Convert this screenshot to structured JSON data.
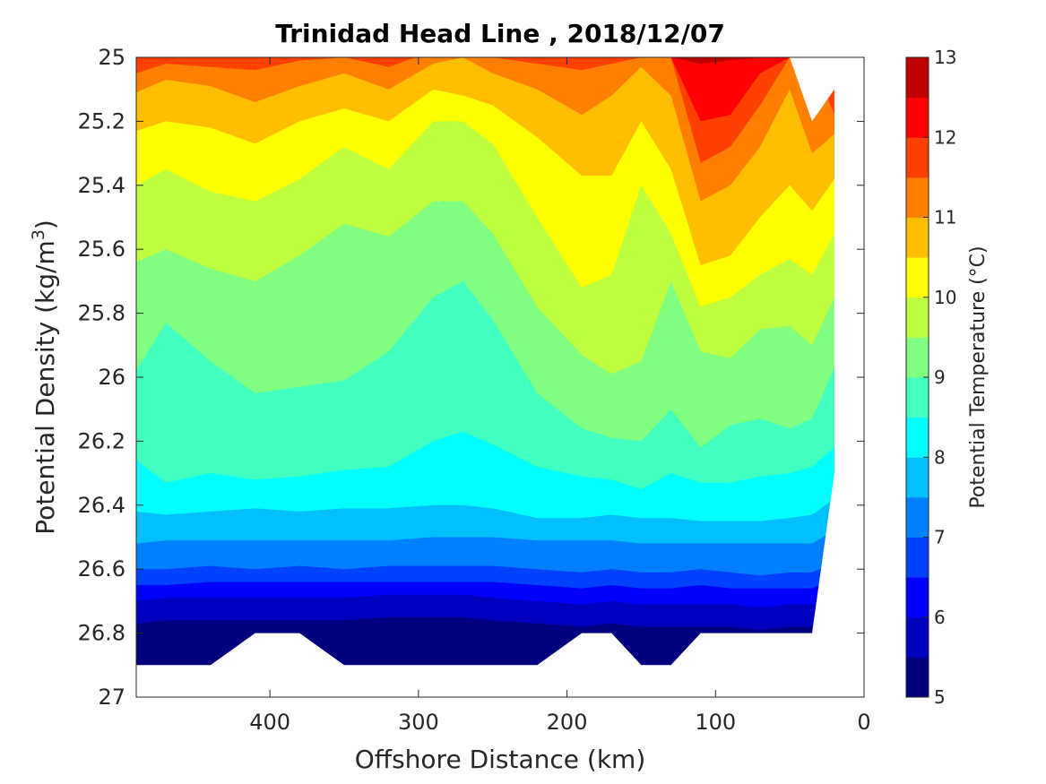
{
  "chart_data": {
    "type": "filled-contour",
    "title": "Trinidad Head Line , 2018/12/07",
    "xlabel": "Offshore Distance (km)",
    "ylabel": "Potential Density (kg/m",
    "ylabel_sup": "3",
    "ylabel_suffix": ")",
    "xlim": [
      490,
      0
    ],
    "x_reversed": true,
    "ylim": [
      25,
      27
    ],
    "y_reversed": true,
    "x_ticks": [
      400,
      300,
      200,
      100,
      0
    ],
    "x_tick_labels": [
      "400",
      "300",
      "200",
      "100",
      "0"
    ],
    "y_ticks": [
      25,
      25.2,
      25.4,
      25.6,
      25.8,
      26,
      26.2,
      26.4,
      26.6,
      26.8,
      27
    ],
    "y_tick_labels": [
      "25",
      "25.2",
      "25.4",
      "25.6",
      "25.8",
      "26",
      "26.2",
      "26.4",
      "26.6",
      "26.8",
      "27"
    ],
    "grid": false,
    "x": [
      490,
      470,
      440,
      410,
      380,
      350,
      320,
      290,
      270,
      250,
      220,
      190,
      170,
      150,
      130,
      110,
      90,
      70,
      50,
      35,
      20
    ],
    "contour_levels": [
      5,
      5.5,
      6,
      6.5,
      7,
      7.5,
      8,
      8.5,
      9,
      9.5,
      10,
      10.5,
      11,
      11.5,
      12,
      12.5,
      13
    ],
    "contour_boundaries": [
      {
        "level": 12.5,
        "sigma": [
          25,
          25,
          24.99,
          25.01,
          25,
          25,
          25,
          25,
          25,
          25,
          25,
          25.01,
          25,
          25,
          25,
          25.02,
          25.01,
          25,
          25,
          25,
          25
        ]
      },
      {
        "level": 12,
        "sigma": [
          25,
          25,
          25,
          25,
          25,
          25,
          25,
          25,
          25,
          25,
          25,
          25,
          25,
          25,
          25,
          25.2,
          25.18,
          25.05,
          25,
          25,
          25
        ]
      },
      {
        "level": 11.5,
        "sigma": [
          25.05,
          25.02,
          25.03,
          25.04,
          25.01,
          25.0,
          25.03,
          24.98,
          25.0,
          25.0,
          25.02,
          25.04,
          25.02,
          25.0,
          25.0,
          25.33,
          25.28,
          25.15,
          25.0,
          25.0,
          25.18
        ]
      },
      {
        "level": 11,
        "sigma": [
          25.11,
          25.07,
          25.09,
          25.14,
          25.09,
          25.05,
          25.1,
          25.02,
          25.0,
          25.05,
          25.1,
          25.18,
          25.12,
          25.03,
          25.12,
          25.45,
          25.4,
          25.28,
          25.1,
          25.3,
          25.24
        ]
      },
      {
        "level": 10.5,
        "sigma": [
          25.23,
          25.2,
          25.22,
          25.27,
          25.2,
          25.16,
          25.2,
          25.1,
          25.12,
          25.15,
          25.25,
          25.37,
          25.37,
          25.2,
          25.35,
          25.65,
          25.62,
          25.5,
          25.4,
          25.48,
          25.38
        ]
      },
      {
        "level": 10,
        "sigma": [
          25.4,
          25.35,
          25.42,
          25.45,
          25.38,
          25.28,
          25.35,
          25.2,
          25.2,
          25.27,
          25.5,
          25.72,
          25.68,
          25.4,
          25.55,
          25.78,
          25.75,
          25.68,
          25.63,
          25.68,
          25.55
        ]
      },
      {
        "level": 9.5,
        "sigma": [
          25.64,
          25.6,
          25.66,
          25.7,
          25.62,
          25.52,
          25.56,
          25.45,
          25.45,
          25.55,
          25.78,
          25.93,
          25.99,
          25.95,
          25.7,
          25.92,
          25.94,
          25.85,
          25.84,
          25.9,
          25.75
        ]
      },
      {
        "level": 9,
        "sigma": [
          25.98,
          25.83,
          25.95,
          26.05,
          26.03,
          26.01,
          25.92,
          25.75,
          25.7,
          25.82,
          26.05,
          26.16,
          26.19,
          26.2,
          26.1,
          26.22,
          26.15,
          26.13,
          26.16,
          26.13,
          25.97
        ]
      },
      {
        "level": 8.5,
        "sigma": [
          26.26,
          26.33,
          26.3,
          26.32,
          26.31,
          26.29,
          26.28,
          26.2,
          26.17,
          26.21,
          26.28,
          26.31,
          26.32,
          26.35,
          26.3,
          26.33,
          26.33,
          26.31,
          26.3,
          26.28,
          26.22
        ]
      },
      {
        "level": 8,
        "sigma": [
          26.42,
          26.43,
          26.42,
          26.41,
          26.42,
          26.41,
          26.41,
          26.4,
          26.4,
          26.41,
          26.44,
          26.44,
          26.43,
          26.44,
          26.44,
          26.45,
          26.45,
          26.45,
          26.44,
          26.43,
          26.38
        ]
      },
      {
        "level": 7.5,
        "sigma": [
          26.52,
          26.51,
          26.51,
          26.51,
          26.51,
          26.51,
          26.51,
          26.5,
          26.5,
          26.5,
          26.51,
          26.51,
          26.51,
          26.52,
          26.52,
          26.52,
          26.52,
          26.52,
          26.52,
          26.52,
          26.48
        ]
      },
      {
        "level": 7,
        "sigma": [
          26.6,
          26.6,
          26.59,
          26.6,
          26.59,
          26.6,
          26.59,
          26.59,
          26.59,
          26.59,
          26.6,
          26.61,
          26.6,
          26.61,
          26.61,
          26.6,
          26.61,
          26.62,
          26.61,
          26.61,
          26.58
        ]
      },
      {
        "level": 6.5,
        "sigma": [
          26.65,
          26.65,
          26.64,
          26.64,
          26.64,
          26.64,
          26.64,
          26.64,
          26.64,
          26.64,
          26.65,
          26.66,
          26.65,
          26.66,
          26.66,
          26.65,
          26.66,
          26.66,
          26.66,
          26.66,
          26.63
        ]
      },
      {
        "level": 6,
        "sigma": [
          26.7,
          26.69,
          26.69,
          26.69,
          26.69,
          26.69,
          26.68,
          26.68,
          26.68,
          26.69,
          26.7,
          26.71,
          26.7,
          26.71,
          26.71,
          26.71,
          26.71,
          26.72,
          26.71,
          26.71,
          26.69
        ]
      },
      {
        "level": 5.5,
        "sigma": [
          26.77,
          26.76,
          26.76,
          26.76,
          26.76,
          26.76,
          26.75,
          26.75,
          26.75,
          26.76,
          26.77,
          26.78,
          26.77,
          26.78,
          26.78,
          26.78,
          26.78,
          26.79,
          26.78,
          26.78,
          26.76
        ]
      },
      {
        "level": 5,
        "sigma": [
          26.85,
          26.84,
          26.84,
          26.84,
          26.84,
          26.84,
          26.83,
          26.83,
          26.83,
          26.84,
          26.85,
          26.85,
          26.85,
          26.86,
          26.86,
          26.86,
          26.86,
          26.86,
          26.86,
          26.86,
          26.84
        ]
      }
    ],
    "data_mask": {
      "top": [
        25,
        25,
        25,
        25,
        25,
        25,
        25,
        25,
        25,
        25,
        25,
        25,
        25,
        25,
        25,
        25,
        25,
        25,
        25,
        25.2,
        25.1
      ],
      "bottom": [
        26.9,
        26.9,
        26.9,
        26.8,
        26.8,
        26.9,
        26.9,
        26.9,
        26.9,
        26.9,
        26.9,
        26.8,
        26.8,
        26.9,
        26.9,
        26.8,
        26.8,
        26.8,
        26.8,
        26.8,
        26.3
      ]
    },
    "colorbar": {
      "label": "Potential Temperature (°C)",
      "range": [
        5,
        13
      ],
      "tick_values": [
        5,
        6,
        7,
        8,
        9,
        10,
        11,
        12,
        13
      ],
      "tick_labels": [
        "5",
        "6",
        "7",
        "8",
        "9",
        "10",
        "11",
        "12",
        "13"
      ],
      "colors": [
        "#00007f",
        "#0000bf",
        "#0000ff",
        "#0040ff",
        "#0080ff",
        "#00bfff",
        "#00ffff",
        "#40ffbf",
        "#80ff80",
        "#bfff40",
        "#ffff00",
        "#ffbf00",
        "#ff8000",
        "#ff4000",
        "#ff0000",
        "#bf0000"
      ]
    }
  }
}
